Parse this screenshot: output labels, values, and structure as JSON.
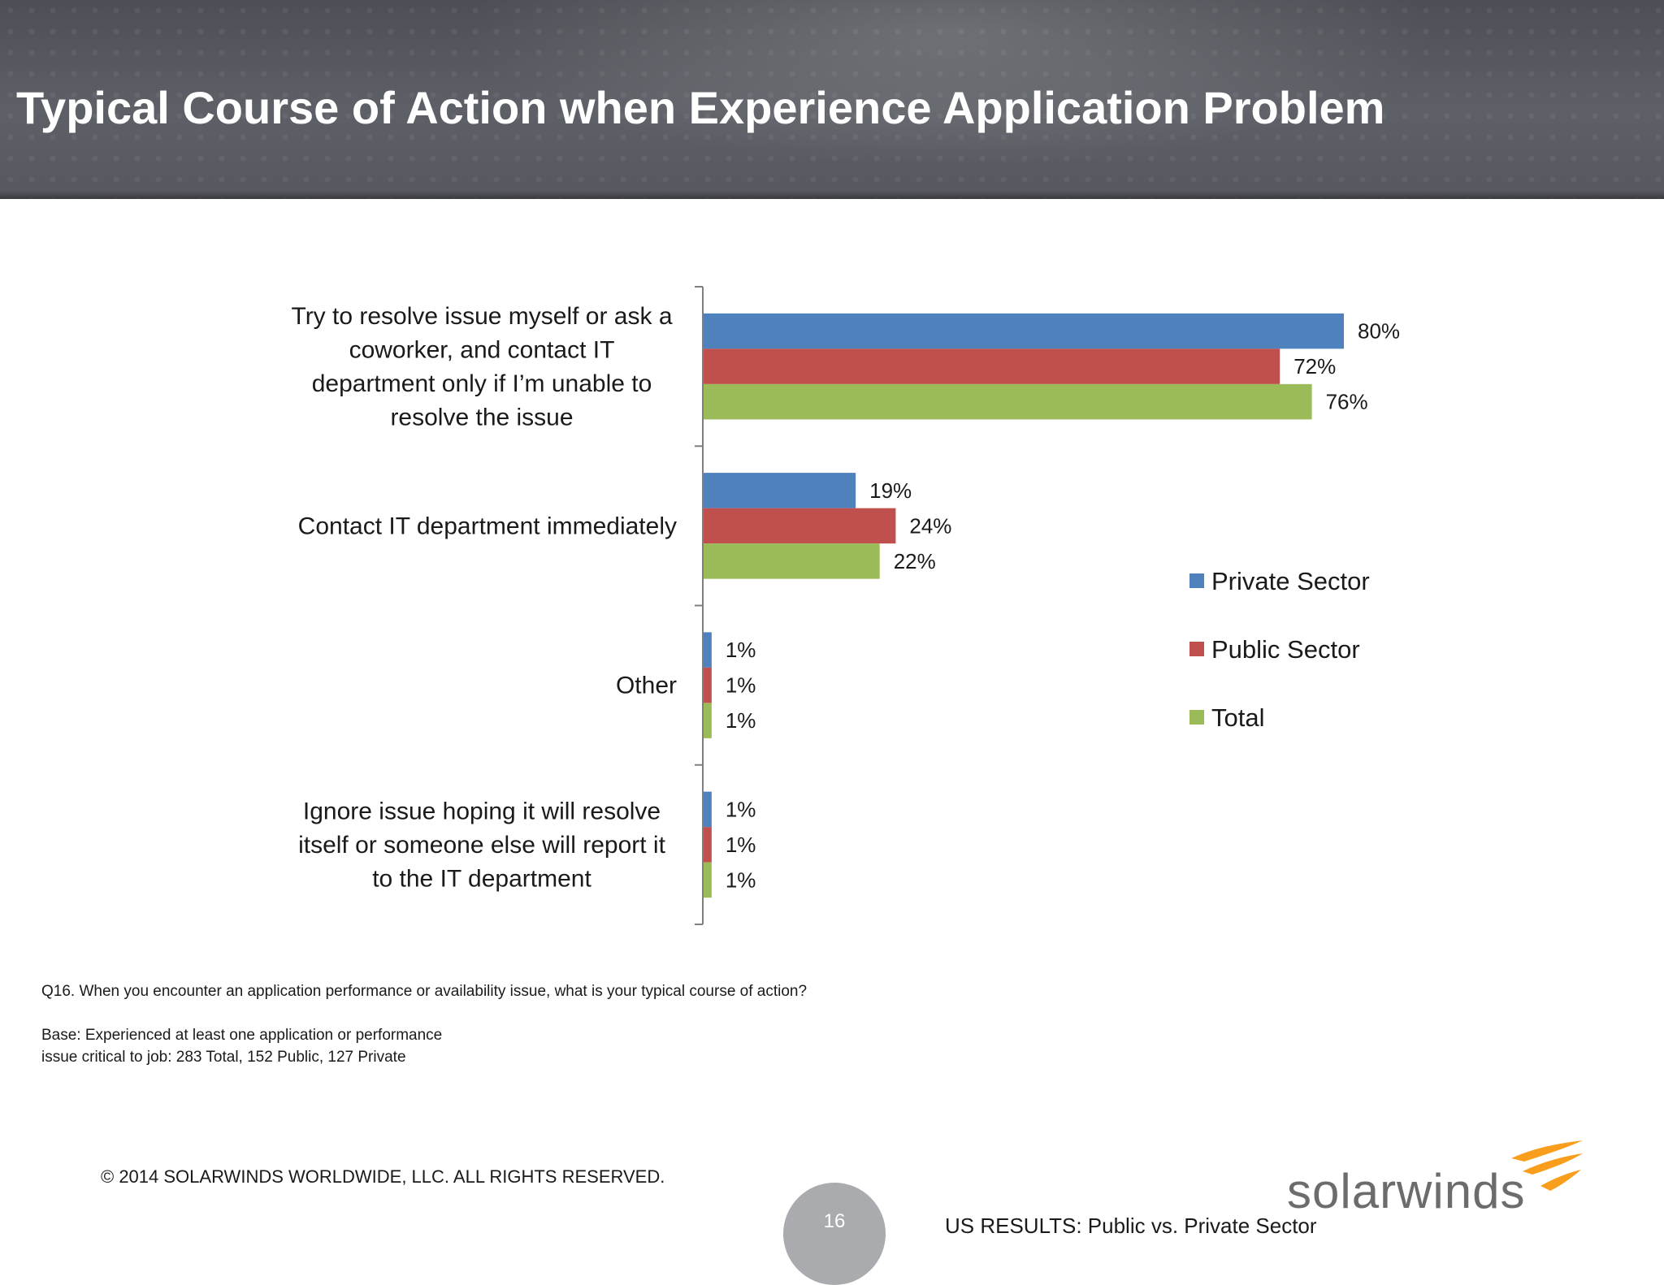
{
  "header": {
    "title": "Typical Course of Action when Experience Application Problem"
  },
  "chart_data": {
    "type": "bar",
    "orientation": "horizontal",
    "categories": [
      [
        "Try to resolve issue myself or ask a",
        "coworker, and contact IT",
        "department only if I’m unable to",
        "resolve the issue"
      ],
      [
        "Contact IT department immediately"
      ],
      [
        "Other"
      ],
      [
        "Ignore issue hoping it will resolve",
        "itself or someone else will report it",
        "to the IT department"
      ]
    ],
    "series": [
      {
        "name": "Private Sector",
        "color": "#4f81bd",
        "values": [
          80,
          19,
          1,
          1
        ],
        "labels": [
          "80%",
          "19%",
          "1%",
          "1%"
        ]
      },
      {
        "name": "Public Sector",
        "color": "#c0504d",
        "values": [
          72,
          24,
          1,
          1
        ],
        "labels": [
          "72%",
          "24%",
          "1%",
          "1%"
        ]
      },
      {
        "name": "Total",
        "color": "#9bbb59",
        "values": [
          76,
          22,
          1,
          1
        ],
        "labels": [
          "76%",
          "22%",
          "1%",
          "1%"
        ]
      }
    ],
    "value_unit": "%",
    "xlim": [
      0,
      100
    ],
    "legend": "right",
    "grid": false
  },
  "notes": {
    "question": "Q16. When you encounter an application performance or availability issue, what is your typical course of action?",
    "base_line1": "Base:  Experienced at least one  application or performance",
    "base_line2": "issue critical to job:  283 Total, 152 Public, 127 Private"
  },
  "footer": {
    "copyright": "© 2014 SOLARWINDS WORLDWIDE, LLC.  ALL RIGHTS RESERVED.",
    "page_number": "16",
    "section": "US RESULTS:  Public vs. Private Sector",
    "logo_text": "solarwinds",
    "logo_color": "#f99d1c"
  }
}
